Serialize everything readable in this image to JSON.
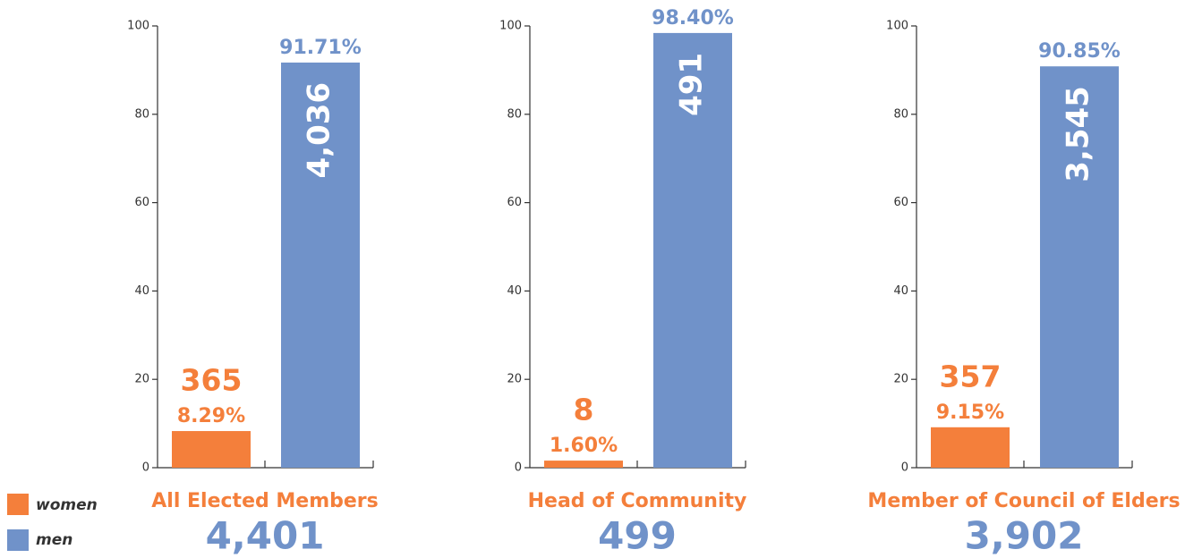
{
  "legend": [
    {
      "name": "women",
      "color": "#f47f3b"
    },
    {
      "name": "men",
      "color": "#7092c9"
    }
  ],
  "chart_data": [
    {
      "type": "bar",
      "title": "All Elected Members",
      "subtitle": "4,401",
      "values": [
        8.29,
        91.71
      ],
      "value_labels": [
        "8.29%",
        "91.71%"
      ],
      "count_labels": [
        "365",
        "4,036"
      ],
      "ylim": [
        0,
        100
      ],
      "yticks": [
        0,
        20,
        40,
        60,
        80,
        100
      ]
    },
    {
      "type": "bar",
      "title": "Head of Community",
      "subtitle": "499",
      "values": [
        1.6,
        98.4
      ],
      "value_labels": [
        "1.60%",
        "98.40%"
      ],
      "count_labels": [
        "8",
        "491"
      ],
      "ylim": [
        0,
        100
      ],
      "yticks": [
        0,
        20,
        40,
        60,
        80,
        100
      ]
    },
    {
      "type": "bar",
      "title": "Member of Council of Elders",
      "subtitle": "3,902",
      "values": [
        9.15,
        90.85
      ],
      "value_labels": [
        "9.15%",
        "90.85%"
      ],
      "count_labels": [
        "357",
        "3,545"
      ],
      "ylim": [
        0,
        100
      ],
      "yticks": [
        0,
        20,
        40,
        60,
        80,
        100
      ]
    }
  ]
}
